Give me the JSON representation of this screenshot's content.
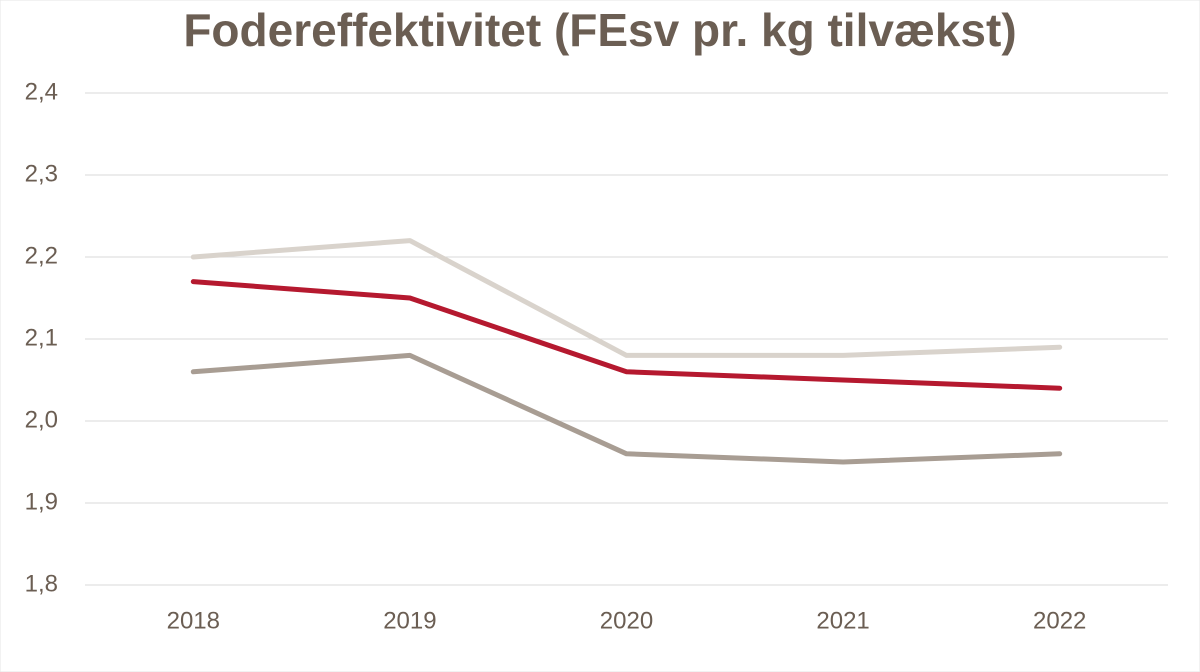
{
  "chart_data": {
    "type": "line",
    "title": "Fodereffektivitet (FEsv pr. kg tilvækst)",
    "categories": [
      "2018",
      "2019",
      "2020",
      "2021",
      "2022"
    ],
    "series": [
      {
        "color": "#d9d3cc",
        "values": [
          2.2,
          2.22,
          2.08,
          2.08,
          2.09
        ]
      },
      {
        "color": "#a89d93",
        "values": [
          2.06,
          2.08,
          1.96,
          1.95,
          1.96
        ]
      },
      {
        "color": "#b5192f",
        "values": [
          2.17,
          2.15,
          2.06,
          2.05,
          2.04
        ]
      }
    ],
    "ylim": [
      1.8,
      2.4
    ],
    "yticks": [
      {
        "value": 1.8,
        "label": "1,8"
      },
      {
        "value": 1.9,
        "label": "1,9"
      },
      {
        "value": 2.0,
        "label": "2,0"
      },
      {
        "value": 2.1,
        "label": "2,1"
      },
      {
        "value": 2.2,
        "label": "2,2"
      },
      {
        "value": 2.3,
        "label": "2,3"
      },
      {
        "value": 2.4,
        "label": "2,4"
      }
    ],
    "grid": true
  }
}
